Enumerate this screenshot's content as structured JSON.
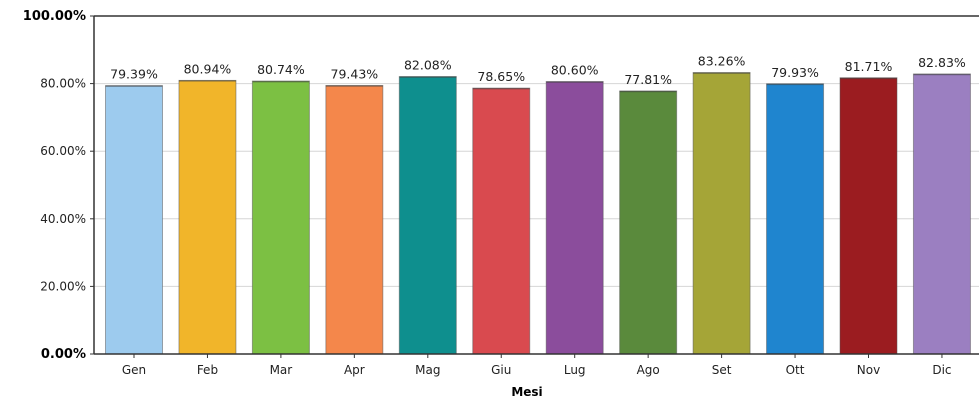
{
  "chart_data": {
    "type": "bar",
    "title": "",
    "xlabel": "Mesi",
    "ylabel": "",
    "ylim": [
      0,
      100
    ],
    "yticks": [
      "0.00%",
      "20.00%",
      "40.00%",
      "60.00%",
      "80.00%",
      "100.00%"
    ],
    "grid": true,
    "legend": "none",
    "categories": [
      "Gen",
      "Feb",
      "Mar",
      "Apr",
      "Mag",
      "Giu",
      "Lug",
      "Ago",
      "Set",
      "Ott",
      "Nov",
      "Dic"
    ],
    "values": [
      79.39,
      80.94,
      80.74,
      79.43,
      82.08,
      78.65,
      80.6,
      77.81,
      83.26,
      79.93,
      81.71,
      82.83
    ],
    "value_labels": [
      "79.39%",
      "80.94%",
      "80.74%",
      "79.43%",
      "82.08%",
      "78.65%",
      "80.60%",
      "77.81%",
      "83.26%",
      "79.93%",
      "81.71%",
      "82.83%"
    ],
    "colors": [
      "#9dcbee",
      "#f1b52a",
      "#7cc043",
      "#f4874b",
      "#0e8f8e",
      "#d94a4f",
      "#8b4d9c",
      "#5a8a3c",
      "#a5a537",
      "#1f85cf",
      "#9b1c20",
      "#9b7fc1"
    ]
  }
}
